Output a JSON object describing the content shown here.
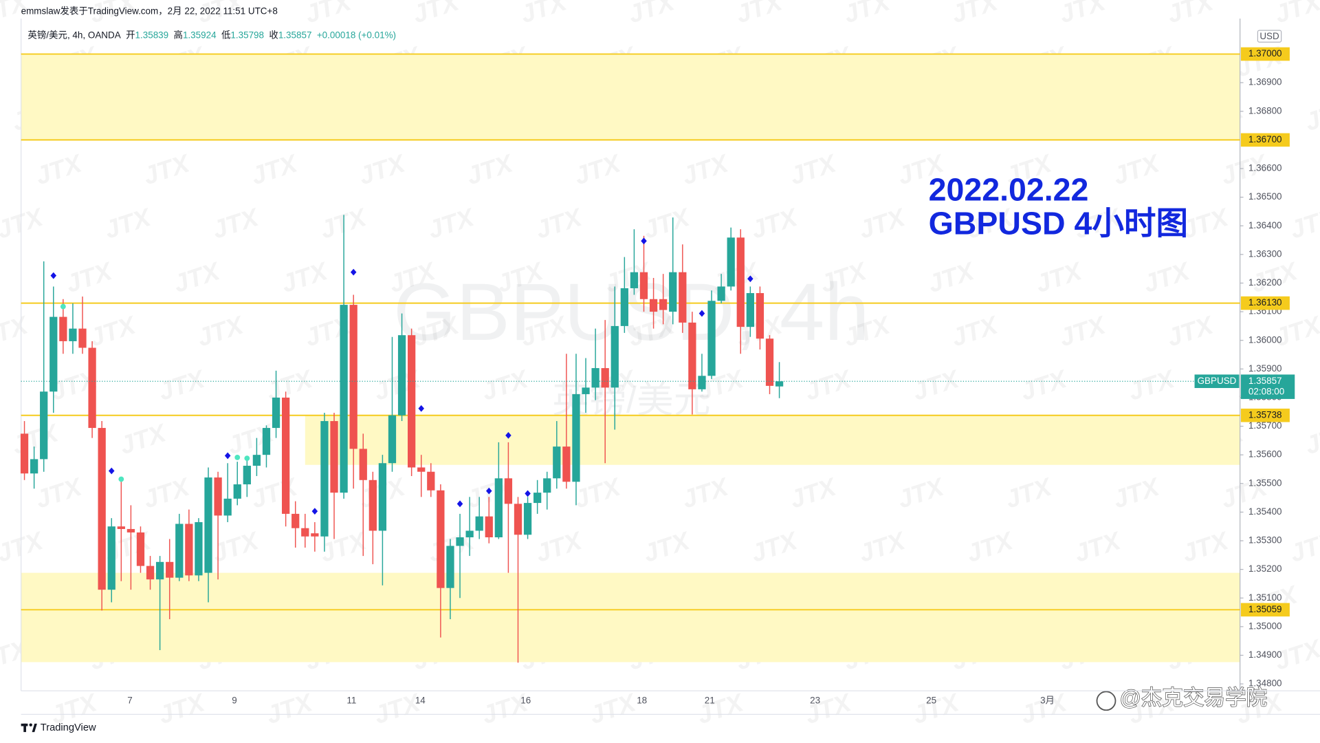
{
  "chart_data": {
    "type": "candlestick",
    "source": "emmslaw发表于TradingView.com，2月 22, 2022 11:51 UTC+8",
    "symbol_line": "英镑/美元, 4h, OANDA",
    "ohlc_labels": [
      "开",
      "高",
      "低",
      "收"
    ],
    "change_label": "+0.00018 (+0.01%)",
    "watermark_symbol": "GBPUSD, 4h",
    "watermark_name": "英镑/美元",
    "watermark_logo": "JTX",
    "annotation": [
      "2022.02.22",
      "GBPUSD 4小时图"
    ],
    "currency": "USD",
    "symbol_tag": "GBPUSD",
    "countdown": "02:08:00",
    "brand": "TradingView",
    "credit": "@杰克交易学院",
    "up_color": "#26a69a",
    "down_color": "#ef5350",
    "open": [
      1.35674,
      1.35535,
      1.35585,
      1.35821,
      1.36082,
      1.35997,
      1.36041,
      1.35974,
      1.35694,
      1.35129,
      1.3535,
      1.35341,
      1.35329,
      1.35212,
      1.35165,
      1.35226,
      1.35171,
      1.35359,
      1.35179,
      1.35188,
      1.35521,
      1.35388,
      1.35447,
      1.35497,
      1.35562,
      1.356,
      1.35694,
      1.358,
      1.35394,
      1.35344,
      1.35326,
      1.35315,
      1.35718,
      1.35468,
      1.36124,
      1.35621,
      1.35512,
      1.35335,
      1.35571,
      1.35738,
      1.36018,
      1.35556,
      1.35541,
      1.35476,
      1.35135,
      1.35282,
      1.35312,
      1.35335,
      1.35385,
      1.35312,
      1.35518,
      1.35429,
      1.35321,
      1.35432,
      1.35468,
      1.35518,
      1.35629,
      1.35506,
      1.35812,
      1.35835,
      1.35903,
      1.35835,
      1.3605,
      1.36182,
      1.36238,
      1.36144,
      1.36144,
      1.361,
      1.36238,
      1.36062,
      1.35829,
      1.35876,
      1.36138,
      1.36188,
      1.36359,
      1.36047,
      1.36165,
      1.36006,
      1.35839
    ],
    "high": [
      1.35718,
      1.35629,
      1.36276,
      1.36188,
      1.36144,
      1.36129,
      1.36153,
      1.35997,
      1.35718,
      1.35379,
      1.35512,
      1.35424,
      1.3535,
      1.35247,
      1.35247,
      1.35306,
      1.35394,
      1.35409,
      1.35379,
      1.35556,
      1.35541,
      1.35571,
      1.35576,
      1.35585,
      1.35659,
      1.35703,
      1.35894,
      1.35821,
      1.35438,
      1.35394,
      1.35365,
      1.35747,
      1.35747,
      1.36438,
      1.36159,
      1.35674,
      1.35541,
      1.356,
      1.36012,
      1.36094,
      1.36041,
      1.356,
      1.35571,
      1.35497,
      1.35306,
      1.35394,
      1.35453,
      1.35453,
      1.35453,
      1.35644,
      1.35644,
      1.35453,
      1.35453,
      1.35512,
      1.35541,
      1.35718,
      1.35953,
      1.35953,
      1.35938,
      1.36041,
      1.36071,
      1.36188,
      1.36291,
      1.36388,
      1.36365,
      1.36218,
      1.36232,
      1.36429,
      1.36335,
      1.361,
      1.35953,
      1.36174,
      1.36232,
      1.36394,
      1.36388,
      1.36188,
      1.36188,
      1.36018,
      1.35924
    ],
    "low": [
      1.35512,
      1.35482,
      1.35541,
      1.35747,
      1.35953,
      1.35953,
      1.35953,
      1.35659,
      1.35056,
      1.35085,
      1.35159,
      1.35129,
      1.35188,
      1.35129,
      1.34918,
      1.35026,
      1.35159,
      1.35159,
      1.35159,
      1.35085,
      1.35165,
      1.35365,
      1.35424,
      1.35453,
      1.35526,
      1.35556,
      1.35659,
      1.3535,
      1.35276,
      1.35276,
      1.35262,
      1.35262,
      1.35306,
      1.35447,
      1.35482,
      1.35247,
      1.35218,
      1.35144,
      1.35541,
      1.35718,
      1.35526,
      1.35453,
      1.35453,
      1.34962,
      1.35026,
      1.351,
      1.35247,
      1.35306,
      1.35291,
      1.35306,
      1.35188,
      1.34874,
      1.35306,
      1.35394,
      1.35409,
      1.35482,
      1.35482,
      1.35424,
      1.35747,
      1.35791,
      1.35571,
      1.35688,
      1.36026,
      1.36159,
      1.361,
      1.36041,
      1.36056,
      1.36056,
      1.36026,
      1.35741,
      1.35821,
      1.35865,
      1.36129,
      1.36174,
      1.35953,
      1.36012,
      1.35968,
      1.35812,
      1.35798
    ],
    "close": [
      1.35535,
      1.35585,
      1.35821,
      1.36082,
      1.35997,
      1.36041,
      1.35974,
      1.35694,
      1.35129,
      1.3535,
      1.35341,
      1.35329,
      1.35212,
      1.35165,
      1.35226,
      1.35171,
      1.35359,
      1.35179,
      1.35365,
      1.35521,
      1.35388,
      1.35447,
      1.35497,
      1.35562,
      1.356,
      1.35694,
      1.358,
      1.35394,
      1.35344,
      1.35315,
      1.35315,
      1.35718,
      1.35468,
      1.36124,
      1.35621,
      1.35512,
      1.35335,
      1.35571,
      1.35738,
      1.36018,
      1.35556,
      1.35541,
      1.35476,
      1.35135,
      1.35282,
      1.35312,
      1.35335,
      1.35385,
      1.35312,
      1.35518,
      1.35429,
      1.35321,
      1.35432,
      1.35468,
      1.35518,
      1.35629,
      1.35506,
      1.35812,
      1.35835,
      1.35903,
      1.35835,
      1.3605,
      1.36182,
      1.36238,
      1.36144,
      1.361,
      1.36106,
      1.36238,
      1.36062,
      1.35829,
      1.35876,
      1.36138,
      1.36188,
      1.36359,
      1.36047,
      1.36165,
      1.36006,
      1.35841,
      1.35857
    ],
    "signals": [
      {
        "color": "#1414e6",
        "shape": "diamond",
        "x": [
          3,
          9,
          21,
          30,
          34,
          41,
          45,
          48,
          50,
          52,
          64,
          70,
          75
        ],
        "values": [
          1.36226,
          1.35544,
          1.35597,
          1.35403,
          1.36238,
          1.35762,
          1.35429,
          1.35474,
          1.35668,
          1.35465,
          1.36347,
          1.36094,
          1.36215
        ]
      },
      {
        "color": "#4ee6c0",
        "shape": "dot",
        "x": [
          4,
          10,
          22,
          23
        ],
        "values": [
          1.36118,
          1.35515,
          1.35591,
          1.35588
        ]
      }
    ],
    "zones": [
      {
        "low": 1.367,
        "high": 1.37,
        "color": "#fff9c4"
      },
      {
        "low": 1.35565,
        "high": 1.35738,
        "start": 29,
        "color": "#fff9c4"
      },
      {
        "low": 1.34876,
        "high": 1.35188,
        "color": "#fff9c4"
      }
    ],
    "level_color": "#f5cb1d",
    "levels": [
      {
        "value": 1.37,
        "label": "1.37000"
      },
      {
        "value": 1.367,
        "label": "1.36700"
      },
      {
        "value": 1.3613,
        "label": "1.36130"
      },
      {
        "value": 1.35738,
        "label": "1.35738"
      },
      {
        "value": 1.35059,
        "label": "1.35059"
      }
    ],
    "xlim": [
      -0.35,
      125.6
    ],
    "xticks": [
      {
        "value": 10.9,
        "label": "7"
      },
      {
        "value": 21.7,
        "label": "9"
      },
      {
        "value": 33.8,
        "label": "11"
      },
      {
        "value": 40.9,
        "label": "14"
      },
      {
        "value": 51.8,
        "label": "16"
      },
      {
        "value": 63.8,
        "label": "18"
      },
      {
        "value": 70.8,
        "label": "21"
      },
      {
        "value": 81.7,
        "label": "23"
      },
      {
        "value": 93.7,
        "label": "25"
      },
      {
        "value": 105.7,
        "label": "3月"
      }
    ],
    "ylim": [
      1.34776,
      1.37124
    ],
    "yticks": [
      {
        "value": 1.348,
        "label": "1.34800"
      },
      {
        "value": 1.349,
        "label": "1.34900"
      },
      {
        "value": 1.35,
        "label": "1.35000"
      },
      {
        "value": 1.351,
        "label": "1.35100"
      },
      {
        "value": 1.352,
        "label": "1.35200"
      },
      {
        "value": 1.353,
        "label": "1.35300"
      },
      {
        "value": 1.354,
        "label": "1.35400"
      },
      {
        "value": 1.355,
        "label": "1.35500"
      },
      {
        "value": 1.356,
        "label": "1.35600"
      },
      {
        "value": 1.357,
        "label": "1.35700"
      },
      {
        "value": 1.358,
        "label": "1.35800"
      },
      {
        "value": 1.359,
        "label": "1.35900"
      },
      {
        "value": 1.36,
        "label": "1.36000"
      },
      {
        "value": 1.361,
        "label": "1.36100"
      },
      {
        "value": 1.362,
        "label": "1.36200"
      },
      {
        "value": 1.363,
        "label": "1.36300"
      },
      {
        "value": 1.364,
        "label": "1.36400"
      },
      {
        "value": 1.365,
        "label": "1.36500"
      },
      {
        "value": 1.366,
        "label": "1.36600"
      },
      {
        "value": 1.368,
        "label": "1.36800"
      },
      {
        "value": 1.369,
        "label": "1.36900"
      }
    ],
    "grid": false
  }
}
